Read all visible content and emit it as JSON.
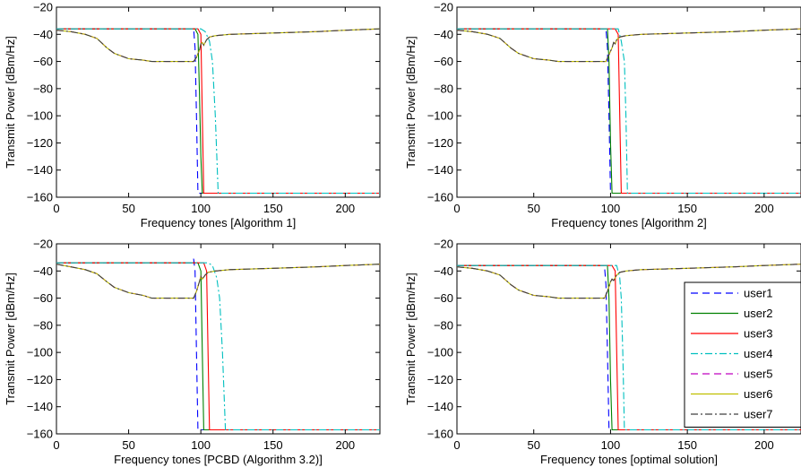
{
  "figure": {
    "ylabel": "Transmit Power [dBm/Hz]"
  },
  "legend": {
    "items": [
      {
        "name": "user1",
        "color": "#0000ff",
        "dash": "8,5"
      },
      {
        "name": "user2",
        "color": "#008000",
        "dash": ""
      },
      {
        "name": "user3",
        "color": "#ff0000",
        "dash": ""
      },
      {
        "name": "user4",
        "color": "#00bfbf",
        "dash": "8,3,2,3"
      },
      {
        "name": "user5",
        "color": "#bf00bf",
        "dash": "8,5"
      },
      {
        "name": "user6",
        "color": "#bfbf00",
        "dash": ""
      },
      {
        "name": "user7",
        "color": "#404040",
        "dash": "8,3,2,3"
      }
    ]
  },
  "chart_data": [
    {
      "type": "line",
      "xlabel": "Frequency tones [Algorithm 1]",
      "ylabel": "Transmit Power [dBm/Hz]",
      "xlim": [
        0,
        224
      ],
      "ylim": [
        -160,
        -20
      ],
      "xticks": [
        0,
        50,
        100,
        150,
        200
      ],
      "yticks": [
        -160,
        -140,
        -120,
        -100,
        -80,
        -60,
        -40,
        -20
      ],
      "grid": false,
      "series": [
        {
          "name": "user1",
          "x": [
            0,
            60,
            95,
            96,
            97,
            98,
            224
          ],
          "y": [
            -36,
            -36,
            -36,
            -50,
            -100,
            -157,
            -157
          ]
        },
        {
          "name": "user2",
          "x": [
            0,
            60,
            96,
            98,
            99,
            100,
            101,
            224
          ],
          "y": [
            -36,
            -36,
            -36,
            -40,
            -80,
            -130,
            -157,
            -157
          ]
        },
        {
          "name": "user3",
          "x": [
            0,
            60,
            98,
            100,
            101,
            102,
            224
          ],
          "y": [
            -36,
            -36,
            -36,
            -40,
            -100,
            -157,
            -157
          ]
        },
        {
          "name": "user4",
          "x": [
            0,
            60,
            100,
            103,
            106,
            108,
            110,
            112,
            224
          ],
          "y": [
            -36,
            -36,
            -36,
            -38,
            -45,
            -60,
            -100,
            -157,
            -157
          ]
        },
        {
          "name": "user5",
          "x": [
            0,
            10,
            20,
            28,
            35,
            40,
            50,
            60,
            66,
            95,
            97,
            99,
            100,
            101,
            102,
            104,
            106,
            110,
            120,
            150,
            180,
            200,
            224
          ],
          "y": [
            -37,
            -38,
            -40,
            -43,
            -50,
            -54,
            -58,
            -59,
            -60,
            -60,
            -57,
            -52,
            -47,
            -46,
            -48,
            -44,
            -42,
            -41,
            -40,
            -39,
            -38,
            -37,
            -36
          ]
        },
        {
          "name": "user6",
          "x": [
            0,
            10,
            20,
            28,
            35,
            40,
            50,
            60,
            66,
            95,
            97,
            99,
            100,
            101,
            102,
            104,
            106,
            110,
            120,
            150,
            180,
            200,
            224
          ],
          "y": [
            -37,
            -38,
            -40,
            -43,
            -50,
            -54,
            -58,
            -59,
            -60,
            -60,
            -57,
            -52,
            -47,
            -46,
            -48,
            -44,
            -42,
            -41,
            -40,
            -39,
            -38,
            -37,
            -36
          ]
        },
        {
          "name": "user7",
          "x": [
            0,
            10,
            20,
            28,
            35,
            40,
            50,
            60,
            66,
            95,
            97,
            99,
            100,
            101,
            102,
            104,
            106,
            110,
            120,
            150,
            180,
            200,
            224
          ],
          "y": [
            -37,
            -38,
            -40,
            -43,
            -50,
            -54,
            -58,
            -59,
            -60,
            -60,
            -57,
            -52,
            -47,
            -46,
            -48,
            -44,
            -42,
            -41,
            -40,
            -39,
            -38,
            -37,
            -36
          ]
        }
      ]
    },
    {
      "type": "line",
      "xlabel": "Frequency tones [Algorithm 2]",
      "ylabel": "Transmit Power [dBm/Hz]",
      "xlim": [
        0,
        224
      ],
      "ylim": [
        -160,
        -20
      ],
      "xticks": [
        0,
        50,
        100,
        150,
        200
      ],
      "yticks": [
        -160,
        -140,
        -120,
        -100,
        -80,
        -60,
        -40,
        -20
      ],
      "grid": false,
      "series": [
        {
          "name": "user1",
          "x": [
            0,
            60,
            97,
            98,
            99,
            100,
            224
          ],
          "y": [
            -36,
            -36,
            -36,
            -50,
            -100,
            -157,
            -157
          ]
        },
        {
          "name": "user2",
          "x": [
            0,
            60,
            98,
            99,
            100,
            101,
            224
          ],
          "y": [
            -36,
            -36,
            -36,
            -60,
            -120,
            -157,
            -157
          ]
        },
        {
          "name": "user3",
          "x": [
            0,
            60,
            103,
            105,
            106,
            107,
            224
          ],
          "y": [
            -36,
            -36,
            -36,
            -40,
            -100,
            -157,
            -157
          ]
        },
        {
          "name": "user4",
          "x": [
            0,
            60,
            105,
            107,
            109,
            110,
            111,
            224
          ],
          "y": [
            -36,
            -36,
            -36,
            -45,
            -60,
            -100,
            -157,
            -157
          ]
        },
        {
          "name": "user5",
          "x": [
            0,
            10,
            20,
            28,
            35,
            40,
            50,
            60,
            66,
            97,
            99,
            101,
            102,
            103,
            104,
            106,
            110,
            120,
            150,
            180,
            200,
            224
          ],
          "y": [
            -37,
            -38,
            -40,
            -43,
            -50,
            -54,
            -58,
            -59,
            -60,
            -60,
            -55,
            -50,
            -46,
            -47,
            -44,
            -42,
            -41,
            -40,
            -39,
            -38,
            -37,
            -36
          ]
        },
        {
          "name": "user6",
          "x": [
            0,
            10,
            20,
            28,
            35,
            40,
            50,
            60,
            66,
            97,
            99,
            101,
            102,
            103,
            104,
            106,
            110,
            120,
            150,
            180,
            200,
            224
          ],
          "y": [
            -37,
            -38,
            -40,
            -43,
            -50,
            -54,
            -58,
            -59,
            -60,
            -60,
            -55,
            -50,
            -46,
            -47,
            -44,
            -42,
            -41,
            -40,
            -39,
            -38,
            -37,
            -36
          ]
        },
        {
          "name": "user7",
          "x": [
            0,
            10,
            20,
            28,
            35,
            40,
            50,
            60,
            66,
            97,
            99,
            101,
            102,
            103,
            104,
            106,
            110,
            120,
            150,
            180,
            200,
            224
          ],
          "y": [
            -37,
            -38,
            -40,
            -43,
            -50,
            -54,
            -58,
            -59,
            -60,
            -60,
            -55,
            -50,
            -46,
            -47,
            -44,
            -42,
            -41,
            -40,
            -39,
            -38,
            -37,
            -36
          ]
        }
      ]
    },
    {
      "type": "line",
      "xlabel": "Frequency tones [PCBD (Algorithm 3.2)]",
      "ylabel": "Transmit Power [dBm/Hz]",
      "xlim": [
        0,
        224
      ],
      "ylim": [
        -160,
        -20
      ],
      "xticks": [
        0,
        50,
        100,
        150,
        200
      ],
      "yticks": [
        -160,
        -140,
        -120,
        -100,
        -80,
        -60,
        -40,
        -20
      ],
      "grid": false,
      "series": [
        {
          "name": "user1",
          "x": [
            0,
            60,
            94,
            95,
            96,
            97,
            98,
            99,
            224
          ],
          "y": [
            -34,
            -34,
            -34,
            -31,
            -40,
            -100,
            -157,
            -157,
            -157
          ]
        },
        {
          "name": "user2",
          "x": [
            0,
            60,
            98,
            100,
            101,
            102,
            224
          ],
          "y": [
            -34,
            -34,
            -34,
            -40,
            -100,
            -157,
            -157
          ]
        },
        {
          "name": "user3",
          "x": [
            0,
            60,
            102,
            104,
            105,
            106,
            224
          ],
          "y": [
            -34,
            -34,
            -34,
            -40,
            -100,
            -157,
            -157
          ]
        },
        {
          "name": "user4",
          "x": [
            0,
            60,
            105,
            108,
            111,
            113,
            115,
            117,
            224
          ],
          "y": [
            -34,
            -34,
            -34,
            -36,
            -45,
            -60,
            -100,
            -157,
            -157
          ]
        },
        {
          "name": "user5",
          "x": [
            0,
            10,
            20,
            28,
            35,
            40,
            50,
            60,
            66,
            95,
            97,
            99,
            100,
            101,
            103,
            105,
            110,
            120,
            150,
            180,
            200,
            224
          ],
          "y": [
            -35,
            -37,
            -39,
            -42,
            -48,
            -52,
            -56,
            -58,
            -60,
            -60,
            -55,
            -48,
            -44,
            -46,
            -43,
            -41,
            -40,
            -39,
            -38,
            -37,
            -36,
            -35
          ]
        },
        {
          "name": "user6",
          "x": [
            0,
            10,
            20,
            28,
            35,
            40,
            50,
            60,
            66,
            95,
            97,
            99,
            100,
            101,
            103,
            105,
            110,
            120,
            150,
            180,
            200,
            224
          ],
          "y": [
            -35,
            -37,
            -39,
            -42,
            -48,
            -52,
            -56,
            -58,
            -60,
            -60,
            -55,
            -48,
            -44,
            -46,
            -43,
            -41,
            -40,
            -39,
            -38,
            -37,
            -36,
            -35
          ]
        },
        {
          "name": "user7",
          "x": [
            0,
            10,
            20,
            28,
            35,
            40,
            50,
            60,
            66,
            95,
            97,
            99,
            100,
            101,
            103,
            105,
            110,
            120,
            150,
            180,
            200,
            224
          ],
          "y": [
            -35,
            -37,
            -39,
            -42,
            -48,
            -52,
            -56,
            -58,
            -60,
            -60,
            -55,
            -48,
            -44,
            -46,
            -43,
            -41,
            -40,
            -39,
            -38,
            -37,
            -36,
            -35
          ]
        }
      ]
    },
    {
      "type": "line",
      "xlabel": "Frequency tones [optimal solution]",
      "ylabel": "Transmit Power [dBm/Hz]",
      "xlim": [
        0,
        224
      ],
      "ylim": [
        -160,
        -20
      ],
      "xticks": [
        0,
        50,
        100,
        150,
        200
      ],
      "yticks": [
        -160,
        -140,
        -120,
        -100,
        -80,
        -60,
        -40,
        -20
      ],
      "grid": false,
      "legend": "right",
      "series": [
        {
          "name": "user1",
          "x": [
            0,
            60,
            96,
            97,
            98,
            99,
            224
          ],
          "y": [
            -36,
            -36,
            -36,
            -50,
            -100,
            -157,
            -157
          ]
        },
        {
          "name": "user2",
          "x": [
            0,
            60,
            98,
            99,
            100,
            101,
            224
          ],
          "y": [
            -36,
            -36,
            -36,
            -60,
            -120,
            -157,
            -157
          ]
        },
        {
          "name": "user3",
          "x": [
            0,
            60,
            101,
            103,
            104,
            105,
            224
          ],
          "y": [
            -36,
            -36,
            -36,
            -40,
            -100,
            -157,
            -157
          ]
        },
        {
          "name": "user4",
          "x": [
            0,
            60,
            104,
            106,
            107,
            108,
            109,
            224
          ],
          "y": [
            -36,
            -36,
            -36,
            -45,
            -60,
            -100,
            -157,
            -157
          ]
        },
        {
          "name": "user5",
          "x": [
            0,
            10,
            20,
            28,
            35,
            40,
            50,
            60,
            66,
            96,
            98,
            100,
            101,
            102,
            104,
            106,
            110,
            120,
            150,
            180,
            200,
            224
          ],
          "y": [
            -37,
            -38,
            -40,
            -43,
            -50,
            -54,
            -58,
            -59,
            -60,
            -60,
            -55,
            -48,
            -46,
            -47,
            -43,
            -41,
            -40,
            -39,
            -38,
            -37,
            -36,
            -35
          ]
        },
        {
          "name": "user6",
          "x": [
            0,
            10,
            20,
            28,
            35,
            40,
            50,
            60,
            66,
            96,
            98,
            100,
            101,
            102,
            104,
            106,
            110,
            120,
            150,
            180,
            200,
            224
          ],
          "y": [
            -37,
            -38,
            -40,
            -43,
            -50,
            -54,
            -58,
            -59,
            -60,
            -60,
            -55,
            -48,
            -46,
            -47,
            -43,
            -41,
            -40,
            -39,
            -38,
            -37,
            -36,
            -35
          ]
        },
        {
          "name": "user7",
          "x": [
            0,
            10,
            20,
            28,
            35,
            40,
            50,
            60,
            66,
            96,
            98,
            100,
            101,
            102,
            104,
            106,
            110,
            120,
            150,
            180,
            200,
            224
          ],
          "y": [
            -37,
            -38,
            -40,
            -43,
            -50,
            -54,
            -58,
            -59,
            -60,
            -60,
            -55,
            -48,
            -46,
            -47,
            -43,
            -41,
            -40,
            -39,
            -38,
            -37,
            -36,
            -35
          ]
        }
      ]
    }
  ]
}
